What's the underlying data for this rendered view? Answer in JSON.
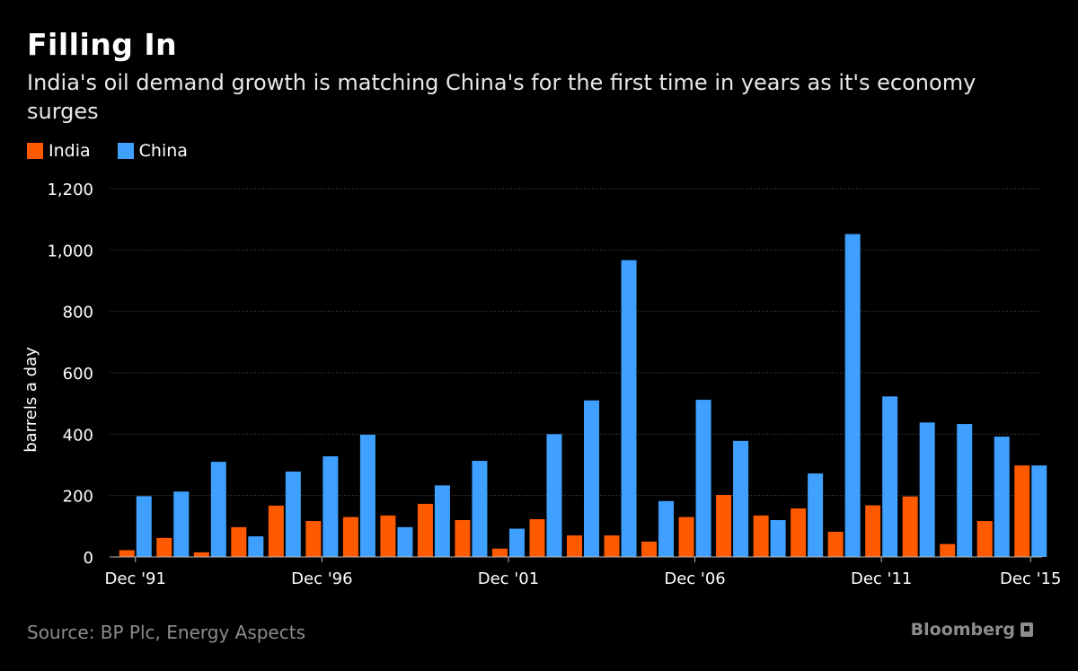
{
  "header": {
    "title": "Filling In",
    "subtitle": "India's oil demand growth is matching China's for the first time in years as it's economy surges"
  },
  "legend": {
    "items": [
      {
        "label": "India",
        "color": "#ff5a00"
      },
      {
        "label": "China",
        "color": "#3fa0ff"
      }
    ]
  },
  "footer": {
    "source": "Source: BP Plc, Energy Aspects",
    "brand": "Bloomberg"
  },
  "chart_data": {
    "type": "bar",
    "ylabel": "barrels a day",
    "xlabel": "",
    "ylim": [
      0,
      1200
    ],
    "yticks": [
      0,
      200,
      400,
      600,
      800,
      1000,
      1200
    ],
    "ytick_labels": [
      "0",
      "200",
      "400",
      "600",
      "800",
      "1,000",
      "1,200"
    ],
    "categories": [
      "1991",
      "1992",
      "1993",
      "1994",
      "1995",
      "1996",
      "1997",
      "1998",
      "1999",
      "2000",
      "2001",
      "2002",
      "2003",
      "2004",
      "2005",
      "2006",
      "2007",
      "2008",
      "2009",
      "2010",
      "2011",
      "2012",
      "2013",
      "2014",
      "2015"
    ],
    "xtick_labels": [
      {
        "index": 0,
        "label": "Dec '91"
      },
      {
        "index": 5,
        "label": "Dec '96"
      },
      {
        "index": 10,
        "label": "Dec '01"
      },
      {
        "index": 15,
        "label": "Dec '06"
      },
      {
        "index": 20,
        "label": "Dec '11"
      },
      {
        "index": 24,
        "label": "Dec '15"
      }
    ],
    "series": [
      {
        "name": "India",
        "color": "#ff5a00",
        "values": [
          22,
          62,
          15,
          97,
          167,
          117,
          130,
          135,
          173,
          120,
          27,
          123,
          70,
          70,
          50,
          130,
          202,
          135,
          158,
          82,
          168,
          197,
          42,
          117,
          298
        ]
      },
      {
        "name": "China",
        "color": "#3fa0ff",
        "values": [
          198,
          213,
          310,
          67,
          278,
          328,
          398,
          97,
          233,
          313,
          92,
          400,
          510,
          967,
          182,
          512,
          378,
          120,
          272,
          1052,
          523,
          438,
          433,
          392,
          298
        ]
      }
    ],
    "grid": true
  }
}
